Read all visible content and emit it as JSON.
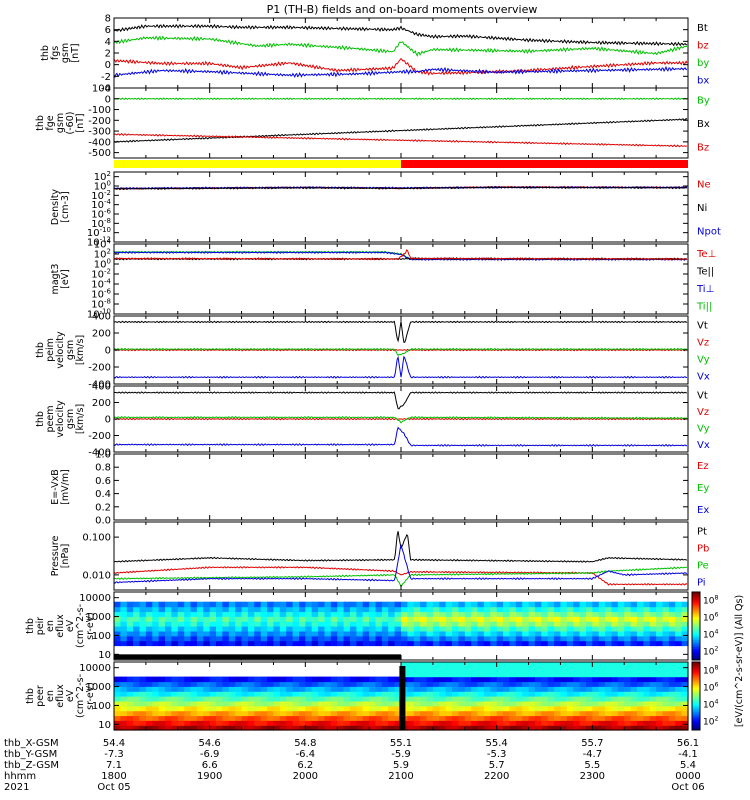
{
  "title": "P1 (TH-B) fields and on-board moments overview",
  "colors": {
    "black": "#000000",
    "red": "#e00000",
    "green": "#00c000",
    "blue": "#0000e0",
    "yellow": "#ffff00",
    "barRed": "#ff0000"
  },
  "x_axis": {
    "row_labels": [
      "thb_X-GSM",
      "thb_Y-GSM",
      "thb_Z-GSM",
      "hhmm",
      "2021"
    ],
    "ticks": [
      {
        "t": 0,
        "vals": [
          "54.4",
          "-7.3",
          "7.1",
          "1800",
          "Oct 05"
        ]
      },
      {
        "t": 60,
        "vals": [
          "54.6",
          "-6.9",
          "6.6",
          "1900",
          ""
        ]
      },
      {
        "t": 120,
        "vals": [
          "54.8",
          "-6.4",
          "6.2",
          "2000",
          ""
        ]
      },
      {
        "t": 180,
        "vals": [
          "55.1",
          "-5.9",
          "5.9",
          "2100",
          ""
        ]
      },
      {
        "t": 240,
        "vals": [
          "55.4",
          "-5.3",
          "5.7",
          "2200",
          ""
        ]
      },
      {
        "t": 300,
        "vals": [
          "55.7",
          "-4.7",
          "5.5",
          "2300",
          ""
        ]
      },
      {
        "t": 360,
        "vals": [
          "56.1",
          "-4.1",
          "5.4",
          "0000",
          "Oct 06"
        ]
      }
    ]
  },
  "colorbar": {
    "label": "[eV/(cm^2-s-sr-eV)] (All Qs)",
    "ticks_top": [
      "10^8",
      "10^6",
      "10^4",
      "10^2"
    ],
    "ticks_bottom": [
      "10^8",
      "10^6",
      "10^4",
      "10^2"
    ]
  },
  "chart_data": [
    {
      "type": "line",
      "panel": "fgs",
      "ylabel": [
        "thb",
        "fgs",
        "gsm",
        "[nT]"
      ],
      "ylim": [
        -4,
        8
      ],
      "yticks": [
        "8",
        "6",
        "4",
        "2",
        "0",
        "-2",
        "-4"
      ],
      "yvals": [
        8,
        6,
        4,
        2,
        0,
        -2,
        -4
      ],
      "legend": [
        {
          "name": "Bt",
          "color": "black"
        },
        {
          "name": "bz",
          "color": "red"
        },
        {
          "name": "by",
          "color": "green"
        },
        {
          "name": "bx",
          "color": "blue"
        }
      ],
      "series": [
        {
          "name": "Bt",
          "color": "black",
          "t": [
            0,
            20,
            40,
            60,
            80,
            110,
            140,
            175,
            180,
            190,
            200,
            220,
            260,
            300,
            340,
            360
          ],
          "v": [
            5.8,
            6.6,
            6.6,
            6.6,
            6.4,
            6.4,
            6.2,
            6.0,
            6.3,
            5.2,
            4.8,
            4.9,
            4.2,
            3.8,
            3.6,
            3.5
          ]
        },
        {
          "name": "bz",
          "color": "red",
          "t": [
            0,
            30,
            60,
            80,
            110,
            140,
            175,
            180,
            190,
            200,
            230,
            260,
            300,
            340,
            360
          ],
          "v": [
            0.7,
            0.2,
            0.2,
            -0.5,
            0.3,
            -1.0,
            -0.6,
            1.0,
            -1.2,
            -1.5,
            -1.3,
            -1.0,
            -0.3,
            0.3,
            0.3
          ]
        },
        {
          "name": "by",
          "color": "green",
          "t": [
            0,
            20,
            60,
            90,
            110,
            150,
            175,
            180,
            190,
            200,
            260,
            300,
            340,
            360
          ],
          "v": [
            3.8,
            4.6,
            4.4,
            3.2,
            3.5,
            2.8,
            2.2,
            4.0,
            1.8,
            2.6,
            2.3,
            2.8,
            1.9,
            3.2
          ]
        },
        {
          "name": "bx",
          "color": "blue",
          "t": [
            0,
            30,
            60,
            110,
            150,
            175,
            180,
            190,
            200,
            240,
            300,
            340,
            360
          ],
          "v": [
            -1.8,
            -1.0,
            -1.2,
            -1.8,
            -1.6,
            -1.3,
            -1.2,
            -1.2,
            -0.8,
            -1.3,
            -1.0,
            -0.8,
            -0.7
          ]
        }
      ]
    },
    {
      "type": "line",
      "panel": "fge",
      "ylabel": [
        "thb",
        "fge",
        "gsm",
        "(-60)",
        "[nT]"
      ],
      "ylim": [
        -550,
        100
      ],
      "yticks": [
        "100",
        "0",
        "-100",
        "-200",
        "-300",
        "-400",
        "-500"
      ],
      "yvals": [
        100,
        0,
        -100,
        -200,
        -300,
        -400,
        -500
      ],
      "legend": [
        {
          "name": "By",
          "color": "green"
        },
        {
          "name": "Bx",
          "color": "black"
        },
        {
          "name": "Bz",
          "color": "red"
        }
      ],
      "series": [
        {
          "name": "By",
          "color": "green",
          "t": [
            0,
            360
          ],
          "v": [
            0,
            0
          ]
        },
        {
          "name": "Bx",
          "color": "black",
          "t": [
            0,
            360
          ],
          "v": [
            -400,
            -190
          ]
        },
        {
          "name": "Bz",
          "color": "red",
          "t": [
            0,
            360
          ],
          "v": [
            -330,
            -440
          ]
        }
      ]
    },
    {
      "type": "bar",
      "panel": "mode-bar",
      "segments": [
        {
          "t0": 0,
          "t1": 180,
          "color": "yellow"
        },
        {
          "t0": 180,
          "t1": 360,
          "color": "barRed"
        }
      ]
    },
    {
      "type": "line",
      "panel": "density",
      "ylabel": [
        "Density",
        "[cm-3]"
      ],
      "yscale": "log",
      "ylim": [
        -12,
        3
      ],
      "yticks": [
        "10^2",
        "10^0",
        "10^-2",
        "10^-4",
        "10^-6",
        "10^-8",
        "10^-10",
        "10^-12"
      ],
      "yvals": [
        2,
        0,
        -2,
        -4,
        -6,
        -8,
        -10,
        -12
      ],
      "legend": [
        {
          "name": "Ne",
          "color": "red"
        },
        {
          "name": "Ni",
          "color": "black"
        },
        {
          "name": "Npot",
          "color": "blue"
        }
      ],
      "series": [
        {
          "name": "Ne",
          "color": "red",
          "t": [
            0,
            120,
            180,
            240,
            360
          ],
          "v": [
            -0.6,
            -0.3,
            -0.5,
            -0.2,
            -0.3
          ]
        },
        {
          "name": "Npot",
          "color": "blue",
          "t": [
            0,
            120,
            180,
            240,
            360
          ],
          "v": [
            -0.5,
            -0.3,
            -0.4,
            -0.3,
            -0.3
          ]
        },
        {
          "name": "Ni",
          "color": "black",
          "t": [
            0,
            120,
            180,
            240,
            360
          ],
          "v": [
            -0.6,
            -0.4,
            -0.5,
            -0.3,
            -0.4
          ]
        }
      ]
    },
    {
      "type": "line",
      "panel": "temp",
      "ylabel": [
        "magt3",
        "[eV]"
      ],
      "yscale": "log",
      "ylim": [
        -10,
        4
      ],
      "yticks": [
        "10^4",
        "10^2",
        "10^0",
        "10^-2",
        "10^-4",
        "10^-6",
        "10^-8",
        "10^-10"
      ],
      "yvals": [
        4,
        2,
        0,
        -2,
        -4,
        -6,
        -8,
        -10
      ],
      "legend": [
        {
          "name": "Te⊥",
          "color": "red"
        },
        {
          "name": "Te||",
          "color": "black"
        },
        {
          "name": "Ti⊥",
          "color": "blue"
        },
        {
          "name": "Ti||",
          "color": "green"
        }
      ],
      "series": [
        {
          "name": "Ti||",
          "color": "green",
          "t": [
            0,
            170,
            180,
            186,
            360
          ],
          "v": [
            2.4,
            2.4,
            2.0,
            1.0,
            1.0
          ]
        },
        {
          "name": "Ti⊥",
          "color": "blue",
          "t": [
            0,
            170,
            180,
            186,
            360
          ],
          "v": [
            2.3,
            2.3,
            1.9,
            0.9,
            0.9
          ]
        },
        {
          "name": "Te||",
          "color": "black",
          "t": [
            0,
            180,
            186,
            360
          ],
          "v": [
            1.0,
            1.0,
            1.1,
            1.0
          ]
        },
        {
          "name": "Te⊥",
          "color": "red",
          "t": [
            0,
            178,
            182,
            184,
            186,
            360
          ],
          "v": [
            1.1,
            1.0,
            2.0,
            2.8,
            1.1,
            1.0
          ]
        }
      ]
    },
    {
      "type": "line",
      "panel": "peim",
      "ylabel": [
        "thb",
        "peim",
        "velocity",
        "gsm",
        "[km/s]"
      ],
      "ylim": [
        -400,
        400
      ],
      "yticks": [
        "400",
        "200",
        "0",
        "-200",
        "-400"
      ],
      "yvals": [
        400,
        200,
        0,
        -200,
        -400
      ],
      "legend": [
        {
          "name": "Vt",
          "color": "black"
        },
        {
          "name": "Vz",
          "color": "red"
        },
        {
          "name": "Vy",
          "color": "green"
        },
        {
          "name": "Vx",
          "color": "blue"
        }
      ],
      "series": [
        {
          "name": "Vt",
          "color": "black",
          "t": [
            0,
            176,
            178,
            180,
            182,
            184,
            186,
            360
          ],
          "v": [
            330,
            330,
            80,
            330,
            60,
            200,
            330,
            330
          ]
        },
        {
          "name": "Vz",
          "color": "red",
          "t": [
            0,
            360
          ],
          "v": [
            0,
            0
          ]
        },
        {
          "name": "Vy",
          "color": "green",
          "t": [
            0,
            176,
            178,
            182,
            186,
            360
          ],
          "v": [
            10,
            10,
            -60,
            -40,
            10,
            10
          ]
        },
        {
          "name": "Vx",
          "color": "blue",
          "t": [
            0,
            176,
            178,
            180,
            182,
            184,
            186,
            360
          ],
          "v": [
            -320,
            -320,
            -60,
            -320,
            -60,
            -200,
            -320,
            -320
          ]
        }
      ]
    },
    {
      "type": "line",
      "panel": "peem",
      "ylabel": [
        "thb",
        "peem",
        "velocity",
        "gsm",
        "[km/s]"
      ],
      "ylim": [
        -400,
        400
      ],
      "yticks": [
        "400",
        "200",
        "0",
        "-200",
        "-400"
      ],
      "yvals": [
        400,
        200,
        0,
        -200,
        -400
      ],
      "legend": [
        {
          "name": "Vt",
          "color": "black"
        },
        {
          "name": "Vz",
          "color": "red"
        },
        {
          "name": "Vy",
          "color": "green"
        },
        {
          "name": "Vx",
          "color": "blue"
        }
      ],
      "series": [
        {
          "name": "Vt",
          "color": "black",
          "t": [
            0,
            176,
            178,
            182,
            186,
            360
          ],
          "v": [
            320,
            320,
            120,
            180,
            320,
            320
          ]
        },
        {
          "name": "Vz",
          "color": "red",
          "t": [
            0,
            360
          ],
          "v": [
            0,
            0
          ]
        },
        {
          "name": "Vy",
          "color": "green",
          "t": [
            0,
            176,
            180,
            186,
            360
          ],
          "v": [
            20,
            20,
            -40,
            20,
            10
          ]
        },
        {
          "name": "Vx",
          "color": "blue",
          "t": [
            0,
            176,
            178,
            182,
            186,
            360
          ],
          "v": [
            -310,
            -310,
            -100,
            -180,
            -320,
            -320
          ]
        }
      ]
    },
    {
      "type": "line",
      "panel": "efield",
      "ylabel": [
        "E=-VxB",
        "[mV/m]"
      ],
      "ylim": [
        0,
        1
      ],
      "yticks": [
        "1.0",
        "0.8",
        "0.6",
        "0.4",
        "0.2",
        "0.0"
      ],
      "yvals": [
        1,
        0.8,
        0.6,
        0.4,
        0.2,
        0
      ],
      "legend": [
        {
          "name": "Ez",
          "color": "red"
        },
        {
          "name": "Ey",
          "color": "green"
        },
        {
          "name": "Ex",
          "color": "blue"
        }
      ],
      "series": []
    },
    {
      "type": "line",
      "panel": "pressure",
      "ylabel": [
        "Pressure",
        "[nPa]"
      ],
      "yscale": "log",
      "ylim": [
        -2.4,
        -0.6
      ],
      "yticks": [
        "0.100",
        "0.010"
      ],
      "yvals": [
        -1,
        -2
      ],
      "legend": [
        {
          "name": "Pt",
          "color": "black"
        },
        {
          "name": "Pb",
          "color": "red"
        },
        {
          "name": "Pe",
          "color": "green"
        },
        {
          "name": "Pi",
          "color": "blue"
        }
      ],
      "series": [
        {
          "name": "Pt",
          "color": "black",
          "t": [
            0,
            60,
            120,
            176,
            178,
            180,
            184,
            186,
            300,
            310,
            360
          ],
          "v": [
            -1.65,
            -1.55,
            -1.62,
            -1.6,
            -0.8,
            -1.3,
            -0.9,
            -1.6,
            -1.65,
            -1.55,
            -1.6
          ]
        },
        {
          "name": "Pb",
          "color": "red",
          "t": [
            0,
            60,
            120,
            176,
            180,
            186,
            300,
            310,
            360
          ],
          "v": [
            -1.95,
            -1.8,
            -1.8,
            -1.9,
            -2.0,
            -1.92,
            -1.95,
            -2.25,
            -2.25
          ]
        },
        {
          "name": "Pe",
          "color": "green",
          "t": [
            0,
            120,
            176,
            180,
            186,
            300,
            310,
            360
          ],
          "v": [
            -2.1,
            -2.05,
            -2.0,
            -2.3,
            -2.0,
            -1.95,
            -1.9,
            -1.8
          ]
        },
        {
          "name": "Pi",
          "color": "blue",
          "t": [
            0,
            60,
            120,
            176,
            180,
            186,
            300,
            310,
            320,
            360
          ],
          "v": [
            -2.2,
            -2.1,
            -2.1,
            -2.15,
            -1.2,
            -2.1,
            -2.1,
            -1.9,
            -2.0,
            -1.95
          ]
        }
      ]
    },
    {
      "type": "heatmap",
      "panel": "peir",
      "ylabel": [
        "thb",
        "peir",
        "en",
        "eflux",
        "eV",
        "(cm^2-s-",
        "sr-eV)"
      ],
      "yscale": "log",
      "ylim": [
        0.7,
        4.3
      ],
      "yticks": [
        "10000",
        "1000",
        "100",
        "10"
      ],
      "yvals": [
        4,
        3,
        2,
        1
      ]
    },
    {
      "type": "heatmap",
      "panel": "peer",
      "ylabel": [
        "thb",
        "peer",
        "en",
        "eflux",
        "eV",
        "(cm^2-s-",
        "sr-eV)"
      ],
      "yscale": "log",
      "ylim": [
        0.7,
        4.3
      ],
      "yticks": [
        "10000",
        "1000",
        "100",
        "10"
      ],
      "yvals": [
        4,
        3,
        2,
        1
      ]
    }
  ]
}
